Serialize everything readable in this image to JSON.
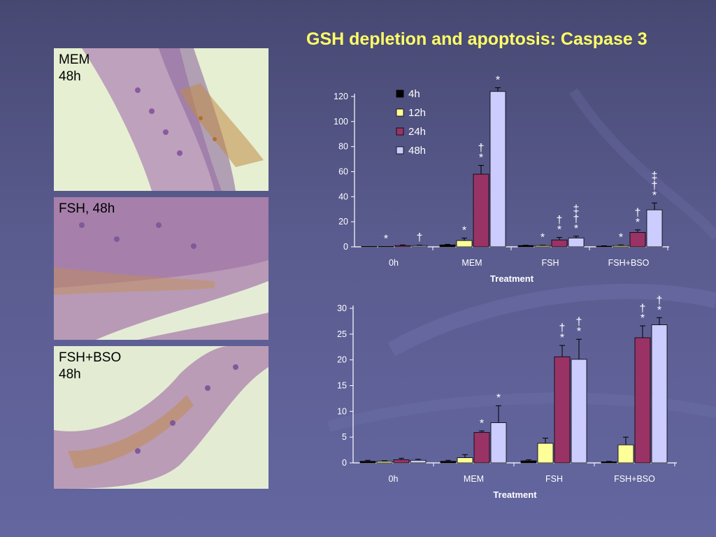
{
  "slide": {
    "title": "GSH depletion and apoptosis: Caspase 3",
    "colors": {
      "background": "#50527f",
      "title": "#ffff66",
      "axis": "#ffffff"
    }
  },
  "panels": [
    {
      "label": "MEM\n48h"
    },
    {
      "label": "FSH, 48h"
    },
    {
      "label": "FSH+BSO\n48h"
    }
  ],
  "chart_data": [
    {
      "type": "bar",
      "title": "",
      "xlabel": "Treatment",
      "ylabel": "",
      "ylim": [
        0,
        120
      ],
      "yticks": [
        0,
        20,
        40,
        60,
        80,
        100,
        120
      ],
      "categories": [
        "0h",
        "MEM",
        "FSH",
        "FSH+BSO"
      ],
      "legend": {
        "placement": "top-left-inside"
      },
      "series": [
        {
          "name": "4h",
          "color": "#000000",
          "values": [
            0.3,
            1.5,
            1,
            0.5
          ],
          "errors": [
            0,
            0.5,
            0.3,
            0.3
          ]
        },
        {
          "name": "12h",
          "color": "#ffff99",
          "values": [
            0.3,
            5,
            1,
            1
          ],
          "errors": [
            0,
            2,
            0.3,
            0.5
          ]
        },
        {
          "name": "24h",
          "color": "#993366",
          "values": [
            1,
            58,
            5.5,
            11.5
          ],
          "errors": [
            0.5,
            7,
            2,
            2
          ]
        },
        {
          "name": "48h",
          "color": "#ccccff",
          "values": [
            1,
            124,
            7,
            29.5
          ],
          "errors": [
            0.3,
            3,
            1.5,
            5.5
          ]
        }
      ],
      "annotations": [
        [
          "",
          "",
          "",
          ""
        ],
        [
          "*",
          "*",
          "*",
          "*"
        ],
        [
          "",
          "*\n†",
          "*\n†",
          "*\n†"
        ],
        [
          "†",
          "*",
          "*\n†\n‡",
          "*\n†\n‡"
        ]
      ]
    },
    {
      "type": "bar",
      "title": "",
      "xlabel": "Treatment",
      "ylabel": "",
      "ylim": [
        0,
        30
      ],
      "yticks": [
        0,
        5,
        10,
        15,
        20,
        25,
        30
      ],
      "categories": [
        "0h",
        "MEM",
        "FSH",
        "FSH+BSO"
      ],
      "series": [
        {
          "name": "4h",
          "color": "#000000",
          "values": [
            0.3,
            0.3,
            0.4,
            0.2
          ],
          "errors": [
            0.2,
            0.2,
            0.2,
            0.1
          ]
        },
        {
          "name": "12h",
          "color": "#ffff99",
          "values": [
            0.3,
            1,
            3.8,
            3.5
          ],
          "errors": [
            0.1,
            0.6,
            1,
            1.5
          ]
        },
        {
          "name": "24h",
          "color": "#993366",
          "values": [
            0.6,
            5.9,
            20.6,
            24.3
          ],
          "errors": [
            0.3,
            0.3,
            2.2,
            2.3
          ]
        },
        {
          "name": "48h",
          "color": "#ccccff",
          "values": [
            0.5,
            7.8,
            20.1,
            26.8
          ],
          "errors": [
            0.2,
            3.3,
            3.9,
            1.4
          ]
        }
      ],
      "annotations": [
        [
          "",
          "",
          "",
          ""
        ],
        [
          "",
          "",
          "",
          ""
        ],
        [
          "",
          "*",
          "*\n†",
          "*\n†"
        ],
        [
          "",
          "*",
          "*\n†",
          "*\n†"
        ]
      ]
    }
  ]
}
